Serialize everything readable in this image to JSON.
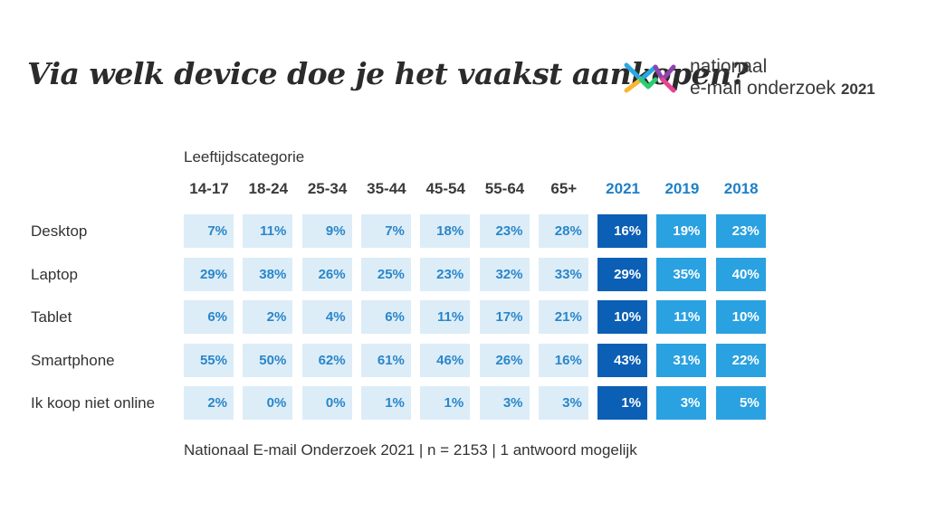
{
  "title": "Via welk device doe je het vaakst aankopen?",
  "logo": {
    "line1": "nationaal",
    "line2": "e-mail onderzoek",
    "year": "2021"
  },
  "footer": "Nationaal E-mail Onderzoek 2021 | n = 2153 | 1 antwoord mogelijk",
  "colors": {
    "age_cell_bg": "#dcedf8",
    "age_cell_text": "#2a86c9",
    "year_2021_bg": "#0b5fb5",
    "year_prior_bg": "#2aa1e1",
    "year_header": "#1f7fc8"
  },
  "chart_data": {
    "type": "table",
    "column_group_label": "Leeftijdscategorie",
    "columns": [
      "14-17",
      "18-24",
      "25-34",
      "35-44",
      "45-54",
      "55-64",
      "65+",
      "2021",
      "2019",
      "2018"
    ],
    "rows": [
      {
        "label": "Desktop",
        "values": [
          "7%",
          "11%",
          "9%",
          "7%",
          "18%",
          "23%",
          "28%",
          "16%",
          "19%",
          "23%"
        ]
      },
      {
        "label": "Laptop",
        "values": [
          "29%",
          "38%",
          "26%",
          "25%",
          "23%",
          "32%",
          "33%",
          "29%",
          "35%",
          "40%"
        ]
      },
      {
        "label": "Tablet",
        "values": [
          "6%",
          "2%",
          "4%",
          "6%",
          "11%",
          "17%",
          "21%",
          "10%",
          "11%",
          "10%"
        ]
      },
      {
        "label": "Smartphone",
        "values": [
          "55%",
          "50%",
          "62%",
          "61%",
          "46%",
          "26%",
          "16%",
          "43%",
          "31%",
          "22%"
        ]
      },
      {
        "label": "Ik koop niet online",
        "values": [
          "2%",
          "0%",
          "0%",
          "1%",
          "1%",
          "3%",
          "3%",
          "1%",
          "3%",
          "5%"
        ]
      }
    ]
  }
}
